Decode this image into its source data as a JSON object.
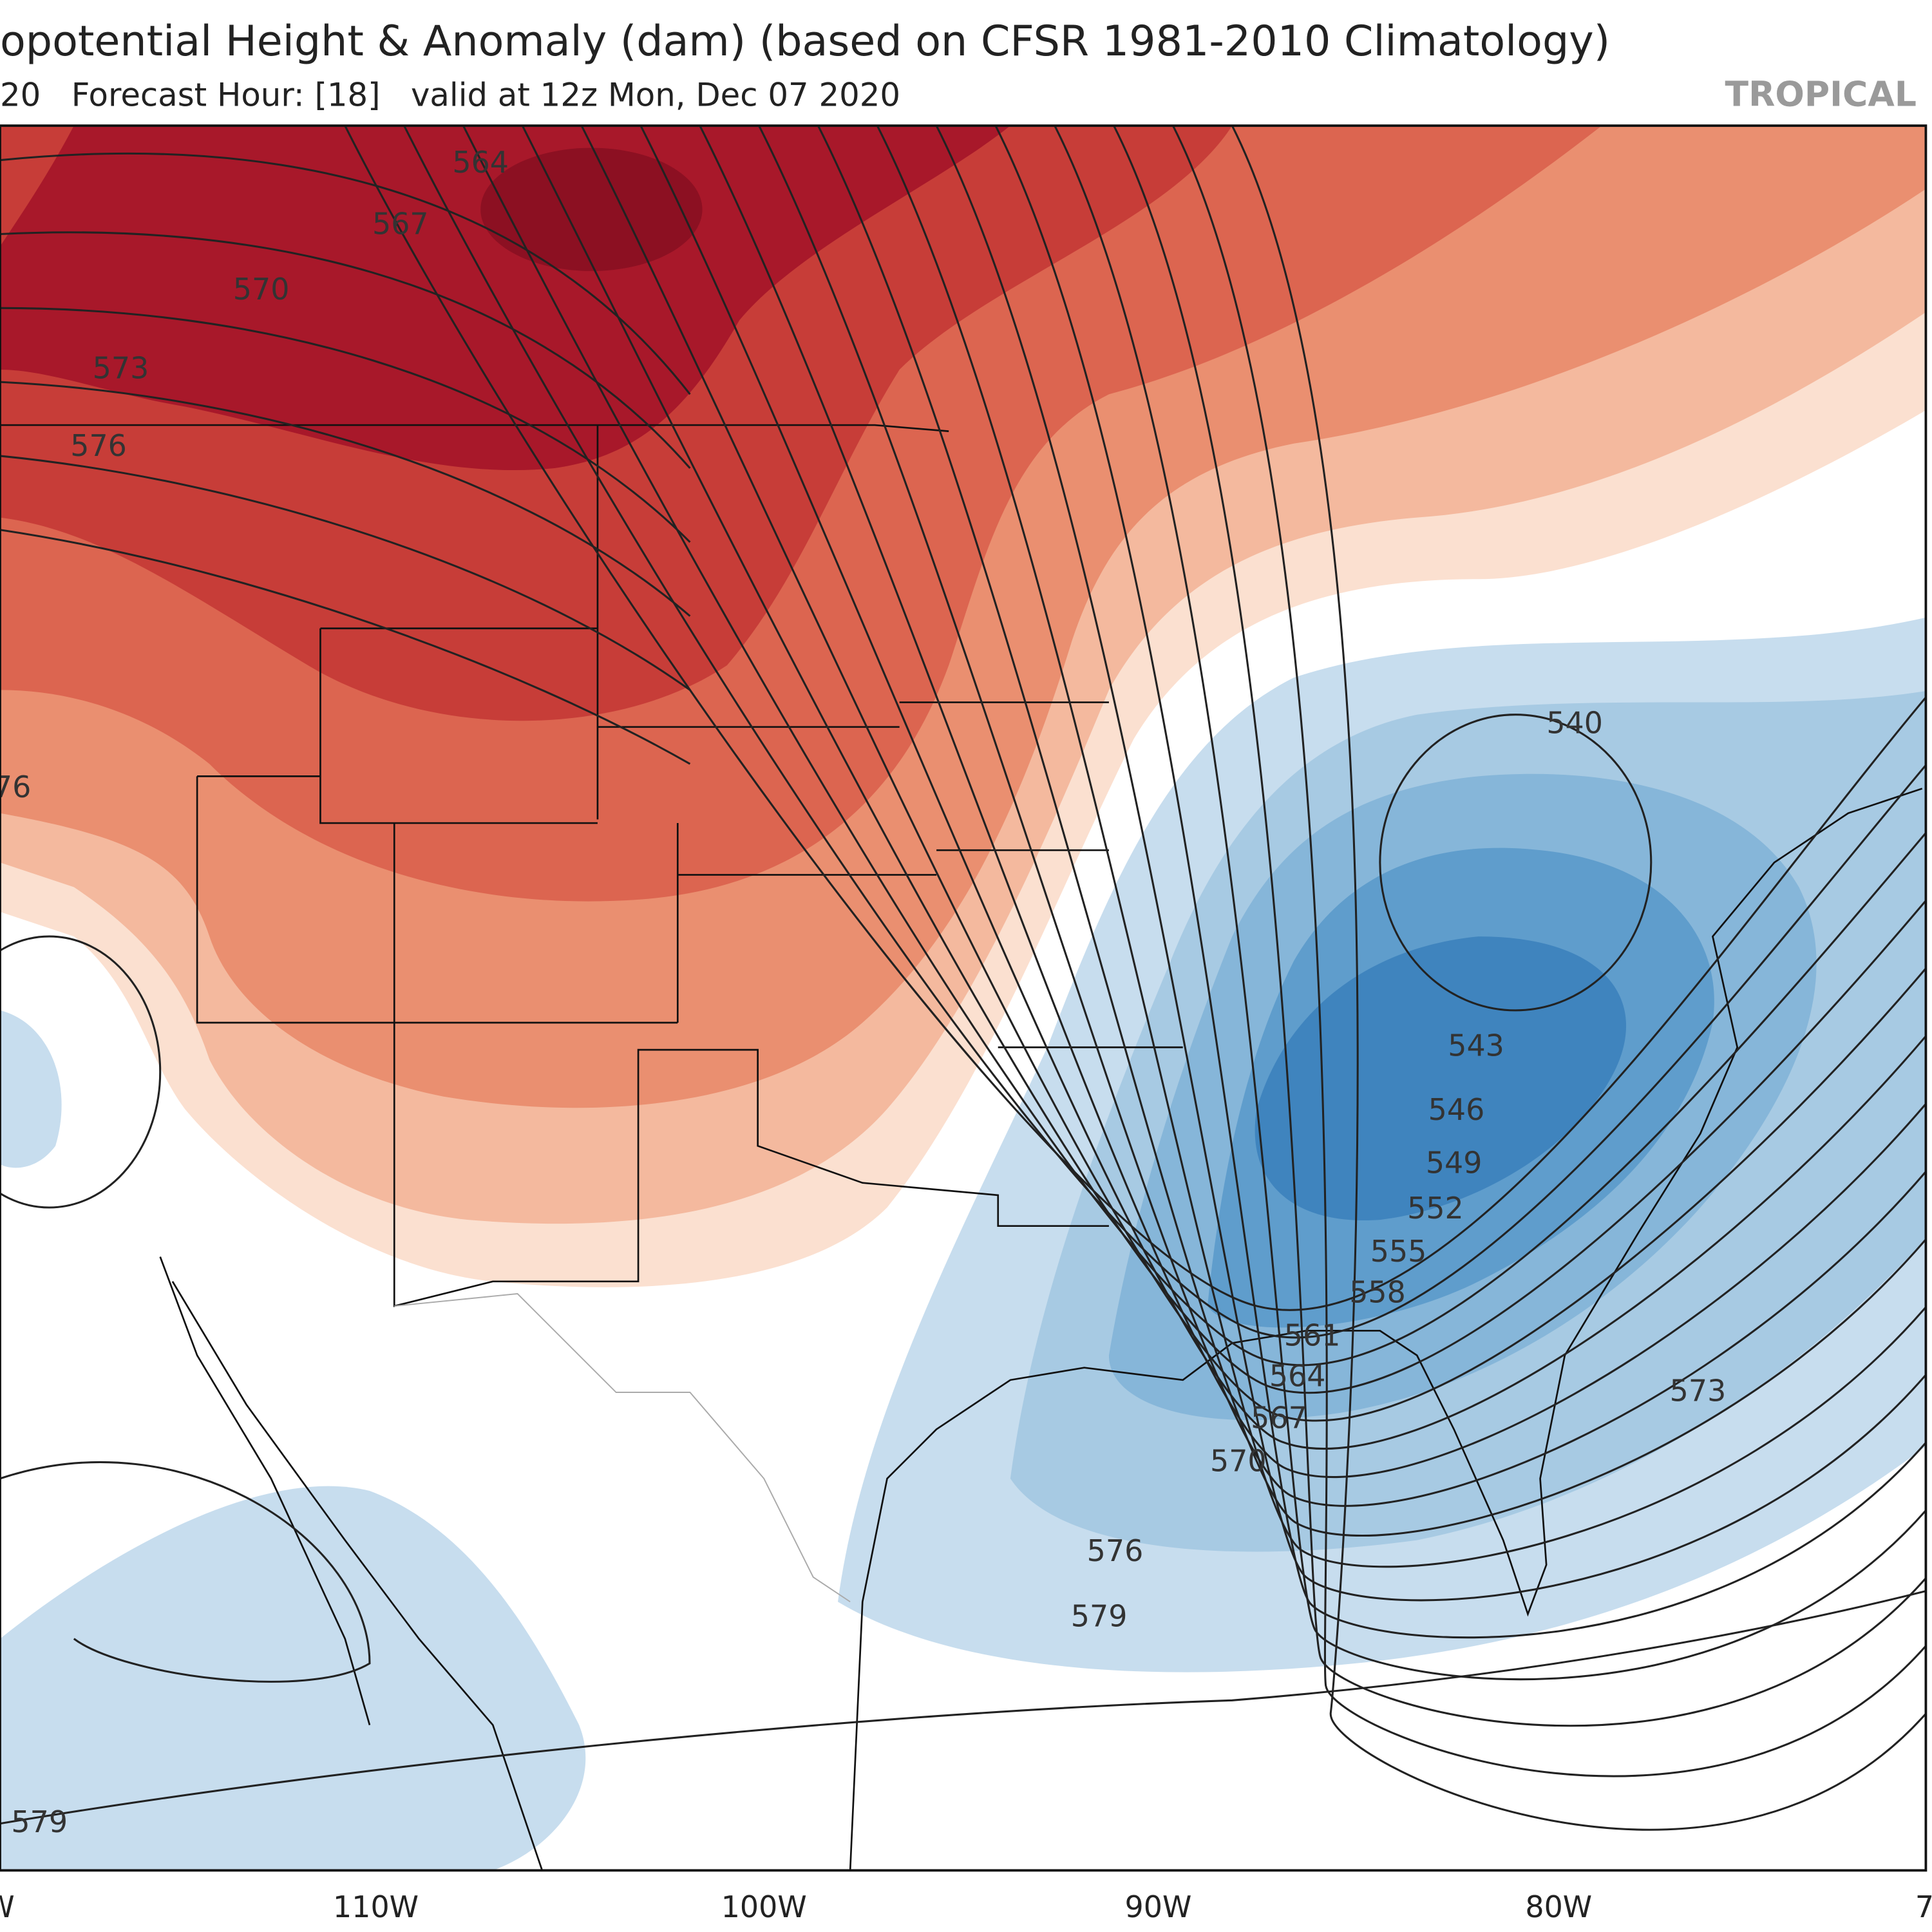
{
  "header": {
    "title": "opotential Height & Anomaly (dam) (based on CFSR 1981-2010 Climatology)",
    "subtitle": "20   Forecast Hour: [18]   valid at 12z Mon, Dec 07 2020",
    "brand": "TROPICAL"
  },
  "map": {
    "contour_labels": [
      564,
      567,
      570,
      573,
      576,
      76,
      540,
      543,
      546,
      549,
      552,
      555,
      558,
      561,
      564,
      567,
      570,
      573,
      576,
      579,
      579
    ],
    "longitude_labels": [
      "W",
      "110W",
      "100W",
      "90W",
      "80W",
      "7"
    ]
  }
}
